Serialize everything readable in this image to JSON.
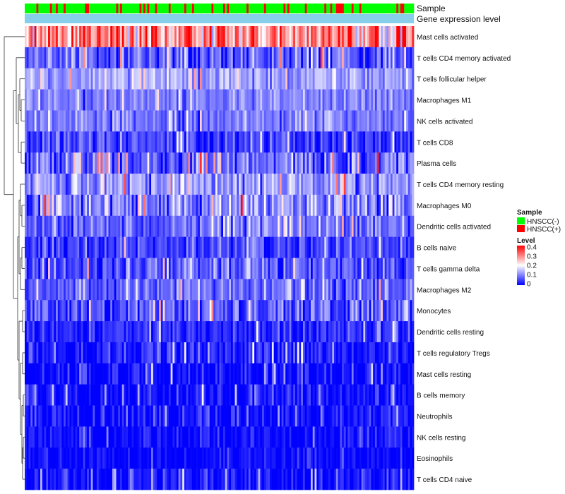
{
  "chart_data": {
    "type": "heatmap",
    "annotation_labels": {
      "sample": "Sample",
      "expression": "Gene expression level"
    },
    "rows": [
      {
        "name": "Mast cells activated",
        "mean": 0.28,
        "spread": 0.12
      },
      {
        "name": "T cells CD4 memory activated",
        "mean": 0.07,
        "spread": 0.08
      },
      {
        "name": "T cells follicular helper",
        "mean": 0.13,
        "spread": 0.05
      },
      {
        "name": "Macrophages M1",
        "mean": 0.1,
        "spread": 0.05
      },
      {
        "name": "NK cells activated",
        "mean": 0.1,
        "spread": 0.05
      },
      {
        "name": "T cells CD8",
        "mean": 0.05,
        "spread": 0.07
      },
      {
        "name": "Plasma cells",
        "mean": 0.08,
        "spread": 0.09
      },
      {
        "name": "T cells CD4 memory resting",
        "mean": 0.12,
        "spread": 0.08
      },
      {
        "name": "Macrophages M0",
        "mean": 0.1,
        "spread": 0.09
      },
      {
        "name": "Dendritic cells activated",
        "mean": 0.08,
        "spread": 0.06
      },
      {
        "name": "B cells naive",
        "mean": 0.05,
        "spread": 0.06
      },
      {
        "name": "T cells gamma delta",
        "mean": 0.07,
        "spread": 0.07
      },
      {
        "name": "Macrophages M2",
        "mean": 0.08,
        "spread": 0.06
      },
      {
        "name": "Monocytes",
        "mean": 0.06,
        "spread": 0.07
      },
      {
        "name": "Dendritic cells resting",
        "mean": 0.03,
        "spread": 0.06
      },
      {
        "name": "T cells regulatory  Tregs",
        "mean": 0.02,
        "spread": 0.06
      },
      {
        "name": "Mast cells resting",
        "mean": 0.008,
        "spread": 0.06
      },
      {
        "name": "B cells memory",
        "mean": 0.01,
        "spread": 0.06
      },
      {
        "name": "Neutrophils",
        "mean": 0.01,
        "spread": 0.05
      },
      {
        "name": "NK cells resting",
        "mean": 0.01,
        "spread": 0.04
      },
      {
        "name": "Eosinophils",
        "mean": 0.005,
        "spread": 0.03
      },
      {
        "name": "T cells CD4 naive",
        "mean": 0.01,
        "spread": 0.05
      }
    ],
    "n_samples": 200,
    "sample_groups": {
      "negative": "HNSCC(-)",
      "positive": "HNSCC(+)",
      "positive_fraction": 0.22
    },
    "color_scale": {
      "min": 0,
      "max": 0.4,
      "low": "#0000ff",
      "mid": "#ffffff",
      "high": "#ff0000",
      "mid_value": 0.2
    },
    "legend": {
      "sample_title": "Sample",
      "level_title": "Level",
      "level_ticks": [
        "0.4",
        "0.3",
        "0.2",
        "0.1",
        "0"
      ],
      "position": "right"
    }
  },
  "colors": {
    "negative": "#00ff00",
    "positive": "#ff0000",
    "expression_bar": "#87ceeb"
  }
}
